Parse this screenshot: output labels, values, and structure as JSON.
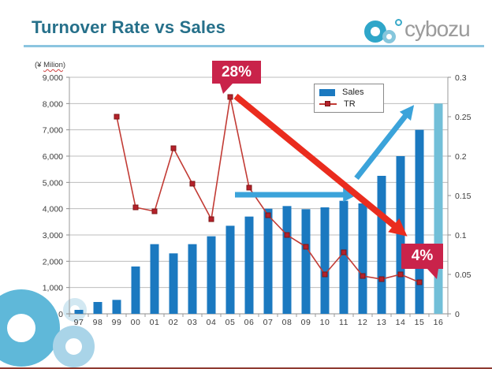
{
  "slide": {
    "title": "Turnover Rate vs Sales",
    "title_color": "#26708a",
    "accent_light_blue": "#8cc5e0",
    "logo_text": "cybozu"
  },
  "chart_data": {
    "type": "combo",
    "title": "Turnover Rate vs Sales",
    "categories": [
      "97",
      "98",
      "99",
      "00",
      "01",
      "02",
      "03",
      "04",
      "05",
      "06",
      "07",
      "08",
      "09",
      "10",
      "11",
      "12",
      "13",
      "14",
      "15",
      "16"
    ],
    "series": [
      {
        "name": "Sales",
        "type": "bar",
        "axis": "left",
        "color": "#1b79c0",
        "last_bar_color": "#72bfd8",
        "values": [
          150,
          450,
          530,
          1800,
          2650,
          2300,
          2650,
          2950,
          3350,
          3700,
          4000,
          4100,
          3980,
          4050,
          4300,
          4200,
          5250,
          6000,
          7000,
          8000
        ]
      },
      {
        "name": "TR",
        "type": "line",
        "axis": "right",
        "color": "#c23b35",
        "marker_color": "#b5212b",
        "values": [
          null,
          null,
          0.25,
          0.135,
          0.13,
          0.21,
          0.165,
          0.12,
          0.275,
          0.16,
          0.125,
          0.1,
          0.085,
          0.05,
          0.078,
          0.048,
          0.044,
          0.05,
          0.04,
          null
        ]
      }
    ],
    "left_axis": {
      "unit_prefix": "(¥ ",
      "unit_word": "Milion",
      "unit_suffix": ")",
      "min": 0,
      "max": 9000,
      "step": 1000,
      "tick_labels": [
        "9,000",
        "8,000",
        "7,000",
        "6,000",
        "5,000",
        "4,000",
        "3,000",
        "2,000",
        "1,000",
        "0"
      ]
    },
    "right_axis": {
      "min": 0,
      "max": 0.3,
      "step": 0.05,
      "tick_labels": [
        "0.3",
        "0.25",
        "0.2",
        "0.15",
        "0.1",
        "0.05",
        "0"
      ]
    },
    "legend": {
      "position": "top-right"
    },
    "grid": true,
    "annotations": {
      "peak_callout": "28%",
      "latest_callout": "4%",
      "callout_color": "#c9234a",
      "arrow_red_color": "#ea2c1e",
      "arrow_blue_color": "#3ba3da"
    }
  }
}
